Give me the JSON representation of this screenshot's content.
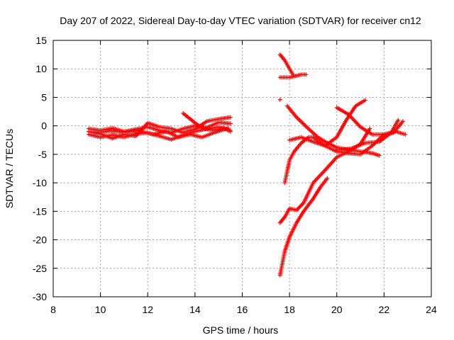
{
  "chart_data": {
    "type": "scatter",
    "title": "Day 207 of 2022, Sidereal Day-to-day VTEC variation (SDTVAR) for receiver cn12",
    "xlabel": "GPS time / hours",
    "ylabel": "SDTVAR / TECUs",
    "xlim": [
      8,
      24
    ],
    "ylim": [
      -30,
      15
    ],
    "x_ticks": [
      "8",
      "10",
      "12",
      "14",
      "16",
      "18",
      "20",
      "22",
      "24"
    ],
    "y_ticks": [
      "15",
      "10",
      "5",
      "0",
      "-5",
      "-10",
      "-15",
      "-20",
      "-25",
      "-30"
    ],
    "grid": true,
    "marker": "+",
    "series_color": "#ff0000",
    "legend": "none",
    "series": [
      {
        "x": [
          9.5,
          10.0,
          10.5,
          11.0,
          11.5,
          12.0,
          12.5,
          13.0,
          13.5,
          14.0,
          14.5,
          15.0,
          15.5
        ],
        "y": [
          -0.5,
          -0.8,
          -0.4,
          -1.0,
          -0.6,
          -0.2,
          -0.8,
          -1.2,
          -0.5,
          0.0,
          -0.3,
          0.6,
          0.4
        ]
      },
      {
        "x": [
          9.5,
          10.0,
          10.5,
          11.0,
          11.5,
          12.0,
          12.5,
          13.0,
          13.5,
          14.0,
          14.5,
          15.0,
          15.5
        ],
        "y": [
          -1.5,
          -2.0,
          -1.6,
          -2.0,
          -1.4,
          -1.2,
          -1.8,
          -2.4,
          -1.6,
          -1.0,
          -0.5,
          -0.2,
          -0.8
        ]
      },
      {
        "x": [
          9.5,
          10.0,
          10.5,
          11.0,
          11.5,
          12.0,
          12.5,
          13.0,
          13.5,
          14.0,
          14.5,
          15.0,
          15.5
        ],
        "y": [
          -1.0,
          -1.4,
          -2.2,
          -1.5,
          -1.8,
          0.5,
          -0.2,
          -0.5,
          -1.2,
          -0.6,
          0.8,
          1.2,
          1.5
        ]
      },
      {
        "x": [
          9.8,
          10.4,
          11.0,
          11.6,
          12.2,
          12.8,
          13.3,
          13.8,
          14.3,
          14.8,
          15.4
        ],
        "y": [
          -1.2,
          -0.9,
          -1.1,
          -0.8,
          -1.5,
          -1.0,
          -2.0,
          -1.5,
          -2.0,
          -1.2,
          -0.4
        ]
      },
      {
        "x": [
          13.5,
          13.8,
          14.1,
          14.4,
          14.8,
          15.2,
          15.5
        ],
        "y": [
          2.2,
          1.2,
          0.2,
          -0.5,
          -0.8,
          -0.3,
          -1.0
        ]
      },
      {
        "x": [
          17.6,
          17.8,
          18.0,
          18.15
        ],
        "y": [
          12.5,
          11.5,
          10.0,
          9.0
        ]
      },
      {
        "x": [
          17.6,
          18.0,
          18.5,
          18.7
        ],
        "y": [
          8.5,
          8.5,
          9.0,
          9.0
        ]
      },
      {
        "x": [
          17.6
        ],
        "y": [
          4.6
        ]
      },
      {
        "x": [
          17.9,
          18.3,
          18.8,
          19.2,
          19.6,
          20.0,
          20.5,
          21.0,
          21.5,
          21.8
        ],
        "y": [
          3.5,
          1.5,
          -0.5,
          -2.0,
          -3.0,
          -3.8,
          -4.2,
          -4.5,
          -4.8,
          -5.2
        ]
      },
      {
        "x": [
          17.8,
          18.0,
          18.2,
          18.5,
          18.8,
          19.0,
          19.5,
          20.0,
          20.4,
          20.8,
          21.2
        ],
        "y": [
          -10.0,
          -6.0,
          -4.5,
          -3.0,
          -2.0,
          -2.0,
          -3.5,
          -2.0,
          1.0,
          3.5,
          4.5
        ]
      },
      {
        "x": [
          17.6,
          17.8,
          18.0,
          18.3,
          18.6,
          19.0,
          19.5,
          20.0,
          20.5,
          21.0,
          21.4
        ],
        "y": [
          -17.0,
          -16.0,
          -14.5,
          -14.8,
          -13.5,
          -10.0,
          -7.8,
          -5.5,
          -4.5,
          -3.2,
          -0.5
        ]
      },
      {
        "x": [
          17.6,
          17.8,
          18.0,
          18.3,
          18.6,
          19.0,
          19.3,
          19.6
        ],
        "y": [
          -26.2,
          -22.0,
          -19.5,
          -17.0,
          -15.0,
          -12.8,
          -10.8,
          -9.2
        ]
      },
      {
        "x": [
          18.0,
          18.5,
          19.0,
          19.5,
          20.0,
          20.5,
          21.0,
          21.5,
          22.0,
          22.5,
          22.9
        ],
        "y": [
          -2.5,
          -2.0,
          -2.8,
          -3.5,
          -4.5,
          -4.8,
          -5.0,
          -3.5,
          -1.5,
          -1.0,
          -1.5
        ]
      },
      {
        "x": [
          20.0,
          20.5,
          21.0,
          21.5,
          22.0,
          22.4,
          22.8
        ],
        "y": [
          3.2,
          2.0,
          -0.2,
          -1.5,
          -1.5,
          -1.2,
          0.8
        ]
      },
      {
        "x": [
          20.0,
          20.6,
          21.2,
          21.8,
          22.3,
          22.6
        ],
        "y": [
          -4.2,
          -4.0,
          -3.0,
          -2.8,
          -1.2,
          1.0
        ]
      }
    ]
  }
}
